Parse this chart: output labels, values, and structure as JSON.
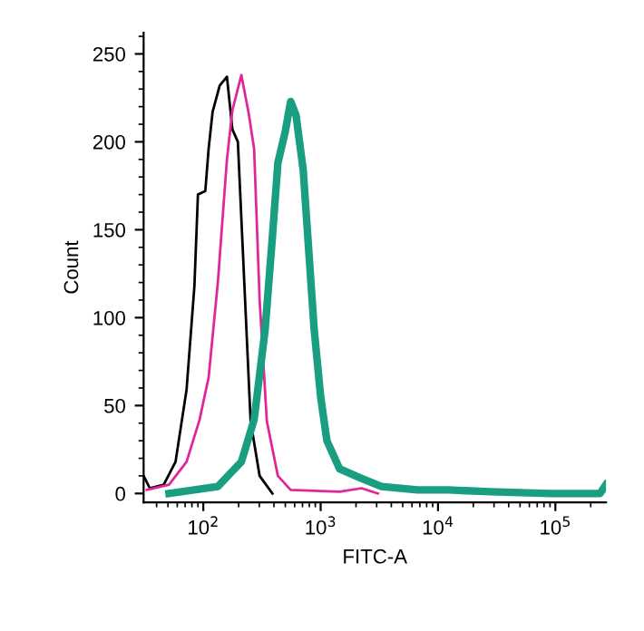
{
  "chart_data": {
    "type": "line",
    "xlabel": "FITC-A",
    "ylabel": "Count",
    "log": "x",
    "grid": false,
    "xlim": [
      31,
      270000
    ],
    "ylim": [
      -5,
      262
    ],
    "xticks": [
      {
        "value": 100,
        "label": "10$^{2}$"
      },
      {
        "value": 1000,
        "label": "10$^{3}$"
      },
      {
        "value": 10000,
        "label": "10$^{4}$"
      },
      {
        "value": 100000,
        "label": "10$^{5}$"
      }
    ],
    "yticks": [
      0,
      50,
      100,
      150,
      200,
      250
    ],
    "series": [
      {
        "color": "#000000",
        "x": [
          31,
          35,
          46,
          58,
          72,
          84,
          90,
          104,
          111,
          120,
          138,
          159,
          177,
          197,
          227,
          253,
          302,
          388
        ],
        "values": [
          10,
          3,
          5,
          18,
          59,
          118,
          170,
          172,
          196,
          217,
          232,
          237,
          207,
          200,
          110,
          41,
          10,
          0
        ]
      },
      {
        "color": "#e0279a",
        "x": [
          33,
          51,
          72,
          93,
          111,
          133,
          159,
          177,
          211,
          244,
          271,
          302,
          348,
          432,
          555,
          1450,
          2230,
          3070
        ],
        "values": [
          2,
          5,
          18,
          42,
          66,
          120,
          190,
          218,
          238,
          216,
          196,
          110,
          41,
          10,
          2,
          1,
          3,
          0
        ]
      },
      {
        "color": "#1a9e82",
        "x": [
          51,
          133,
          211,
          271,
          336,
          388,
          432,
          500,
          555,
          617,
          710,
          881,
          1000,
          1130,
          1450,
          2150,
          3300,
          6700,
          12300,
          28000,
          91000,
          240000,
          270000
        ],
        "values": [
          0,
          4,
          18,
          42,
          93,
          146,
          188,
          206,
          223,
          215,
          184,
          93,
          55,
          30,
          14,
          9,
          4,
          2,
          2,
          1,
          0,
          0,
          5
        ]
      }
    ]
  }
}
